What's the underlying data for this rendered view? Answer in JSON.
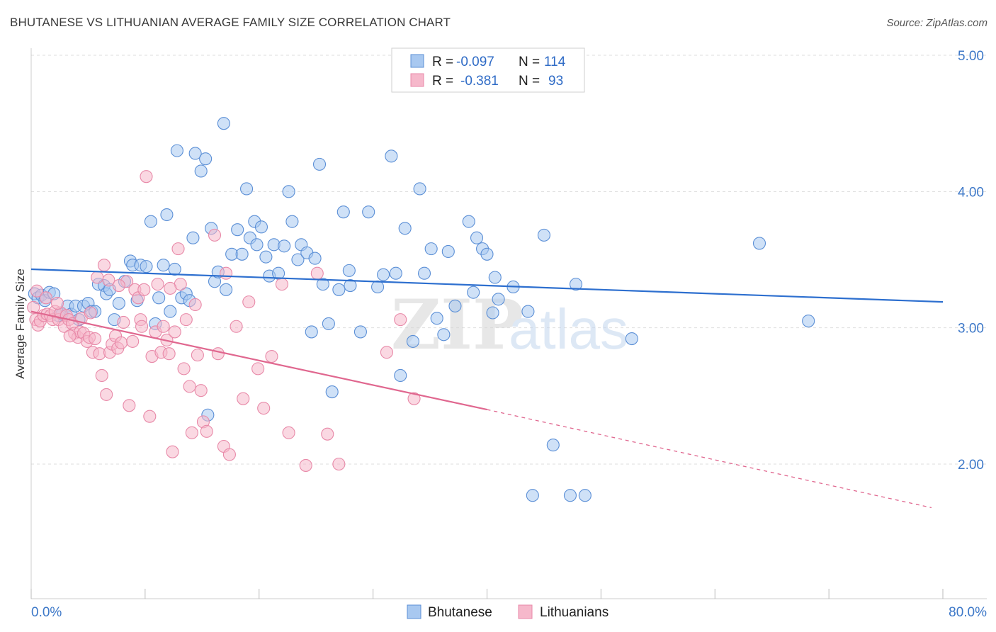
{
  "header": {
    "title": "BHUTANESE VS LITHUANIAN AVERAGE FAMILY SIZE CORRELATION CHART",
    "source": "Source: ZipAtlas.com"
  },
  "watermark": {
    "zip": "ZIP",
    "atlas": "atlas"
  },
  "colors": {
    "blue_fill": "#a8c8f0",
    "blue_stroke": "#5b8fd6",
    "blue_line": "#2d6fcf",
    "pink_fill": "#f6b8cb",
    "pink_stroke": "#e889a8",
    "pink_line": "#e0678f",
    "axis_text": "#3d78c8",
    "grid": "#dddddd"
  },
  "legend": {
    "rows": [
      {
        "r_label": "R =",
        "r_value": "-0.097",
        "n_label": "N =",
        "n_value": "114"
      },
      {
        "r_label": "R =",
        "r_value": "-0.381",
        "n_label": "N =",
        "n_value": "93"
      }
    ],
    "bottom": [
      "Bhutanese",
      "Lithuanians"
    ]
  },
  "chart_data": {
    "type": "scatter",
    "title": "BHUTANESE VS LITHUANIAN AVERAGE FAMILY SIZE CORRELATION CHART",
    "ylabel": "Average Family Size",
    "xlabel": "",
    "xlim": [
      0,
      80
    ],
    "ylim": [
      1.0,
      5.1
    ],
    "x_tick_labels": [
      "0.0%",
      "80.0%"
    ],
    "y_ticks": [
      2.0,
      3.0,
      4.0,
      5.0
    ],
    "y_tick_labels": [
      "2.00",
      "3.00",
      "4.00",
      "5.00"
    ],
    "grid": true,
    "legend_position": "top-center",
    "series": [
      {
        "name": "Bhutanese",
        "color": "#5b8fd6",
        "trend": {
          "x": [
            0,
            80
          ],
          "y": [
            3.43,
            3.19
          ]
        },
        "points": [
          [
            0.3,
            3.25
          ],
          [
            0.6,
            3.22
          ],
          [
            0.9,
            3.24
          ],
          [
            1.2,
            3.2
          ],
          [
            1.6,
            3.26
          ],
          [
            2.0,
            3.25
          ],
          [
            2.4,
            3.09
          ],
          [
            2.7,
            3.1
          ],
          [
            3.2,
            3.16
          ],
          [
            3.5,
            3.1
          ],
          [
            3.9,
            3.16
          ],
          [
            4.2,
            3.06
          ],
          [
            4.6,
            3.16
          ],
          [
            5.0,
            3.18
          ],
          [
            5.3,
            3.12
          ],
          [
            5.6,
            3.12
          ],
          [
            5.9,
            3.32
          ],
          [
            6.4,
            3.31
          ],
          [
            6.6,
            3.25
          ],
          [
            6.9,
            3.28
          ],
          [
            7.3,
            3.06
          ],
          [
            7.7,
            3.18
          ],
          [
            8.2,
            3.34
          ],
          [
            8.7,
            3.49
          ],
          [
            8.9,
            3.46
          ],
          [
            9.3,
            3.2
          ],
          [
            9.6,
            3.46
          ],
          [
            10.1,
            3.45
          ],
          [
            10.5,
            3.78
          ],
          [
            10.9,
            3.03
          ],
          [
            11.2,
            3.22
          ],
          [
            11.6,
            3.46
          ],
          [
            11.9,
            3.83
          ],
          [
            12.2,
            3.12
          ],
          [
            12.6,
            3.43
          ],
          [
            12.8,
            4.3
          ],
          [
            13.2,
            3.22
          ],
          [
            13.6,
            3.25
          ],
          [
            13.9,
            3.2
          ],
          [
            14.2,
            3.66
          ],
          [
            14.4,
            4.28
          ],
          [
            14.9,
            4.15
          ],
          [
            15.3,
            4.24
          ],
          [
            15.5,
            2.36
          ],
          [
            15.8,
            3.73
          ],
          [
            16.1,
            3.34
          ],
          [
            16.4,
            3.41
          ],
          [
            16.9,
            4.5
          ],
          [
            17.1,
            3.28
          ],
          [
            17.6,
            3.54
          ],
          [
            18.1,
            3.72
          ],
          [
            18.5,
            3.54
          ],
          [
            18.9,
            4.02
          ],
          [
            19.2,
            3.66
          ],
          [
            19.6,
            3.78
          ],
          [
            19.8,
            3.61
          ],
          [
            20.2,
            3.74
          ],
          [
            20.6,
            3.52
          ],
          [
            20.9,
            3.38
          ],
          [
            21.3,
            3.61
          ],
          [
            21.7,
            3.4
          ],
          [
            22.2,
            3.6
          ],
          [
            22.6,
            4.0
          ],
          [
            22.9,
            3.78
          ],
          [
            23.4,
            3.5
          ],
          [
            23.7,
            3.61
          ],
          [
            24.2,
            3.55
          ],
          [
            24.6,
            2.97
          ],
          [
            24.9,
            3.51
          ],
          [
            25.3,
            4.2
          ],
          [
            25.6,
            3.32
          ],
          [
            26.1,
            3.03
          ],
          [
            26.4,
            2.53
          ],
          [
            27.0,
            3.28
          ],
          [
            27.4,
            3.85
          ],
          [
            27.9,
            3.42
          ],
          [
            28.0,
            3.31
          ],
          [
            28.9,
            2.97
          ],
          [
            29.6,
            3.85
          ],
          [
            30.4,
            3.3
          ],
          [
            30.9,
            3.39
          ],
          [
            31.6,
            4.26
          ],
          [
            32.0,
            3.4
          ],
          [
            32.4,
            2.65
          ],
          [
            32.8,
            3.73
          ],
          [
            33.5,
            2.9
          ],
          [
            34.1,
            4.02
          ],
          [
            34.5,
            3.4
          ],
          [
            35.1,
            3.58
          ],
          [
            35.6,
            3.07
          ],
          [
            36.2,
            2.95
          ],
          [
            36.6,
            3.56
          ],
          [
            37.2,
            3.16
          ],
          [
            38.4,
            3.78
          ],
          [
            38.8,
            3.26
          ],
          [
            39.1,
            3.66
          ],
          [
            39.6,
            3.58
          ],
          [
            40.0,
            3.54
          ],
          [
            40.5,
            3.11
          ],
          [
            40.7,
            3.37
          ],
          [
            41.0,
            3.21
          ],
          [
            42.3,
            3.3
          ],
          [
            43.6,
            3.12
          ],
          [
            44.0,
            1.77
          ],
          [
            45.0,
            3.68
          ],
          [
            45.8,
            2.14
          ],
          [
            47.3,
            1.77
          ],
          [
            47.8,
            3.32
          ],
          [
            48.6,
            1.77
          ],
          [
            63.9,
            3.62
          ],
          [
            68.2,
            3.05
          ],
          [
            52.7,
            2.92
          ]
        ]
      },
      {
        "name": "Lithuanians",
        "color": "#e889a8",
        "trend": {
          "x": [
            0,
            40
          ],
          "y": [
            3.12,
            2.4
          ]
        },
        "trend_dashed": {
          "x": [
            40,
            79
          ],
          "y": [
            2.4,
            1.68
          ]
        },
        "points": [
          [
            0.2,
            3.15
          ],
          [
            0.4,
            3.06
          ],
          [
            0.6,
            3.02
          ],
          [
            0.8,
            3.05
          ],
          [
            1.1,
            3.09
          ],
          [
            1.4,
            3.1
          ],
          [
            1.7,
            3.09
          ],
          [
            1.9,
            3.06
          ],
          [
            2.1,
            3.12
          ],
          [
            2.4,
            3.06
          ],
          [
            2.6,
            3.11
          ],
          [
            2.9,
            3.01
          ],
          [
            3.1,
            3.09
          ],
          [
            3.3,
            3.06
          ],
          [
            3.6,
            3.03
          ],
          [
            3.8,
            2.96
          ],
          [
            4.1,
            2.93
          ],
          [
            4.3,
            2.97
          ],
          [
            4.6,
            2.96
          ],
          [
            4.9,
            2.9
          ],
          [
            5.1,
            2.93
          ],
          [
            5.4,
            2.82
          ],
          [
            5.6,
            2.92
          ],
          [
            5.8,
            3.37
          ],
          [
            6.0,
            2.81
          ],
          [
            6.2,
            2.65
          ],
          [
            6.4,
            3.46
          ],
          [
            6.6,
            2.51
          ],
          [
            6.9,
            2.82
          ],
          [
            7.1,
            2.88
          ],
          [
            7.4,
            2.94
          ],
          [
            7.6,
            2.85
          ],
          [
            7.9,
            2.89
          ],
          [
            8.1,
            3.04
          ],
          [
            8.4,
            3.34
          ],
          [
            8.6,
            2.43
          ],
          [
            8.9,
            2.9
          ],
          [
            9.1,
            3.28
          ],
          [
            9.4,
            3.22
          ],
          [
            9.6,
            3.06
          ],
          [
            9.9,
            3.28
          ],
          [
            10.1,
            4.11
          ],
          [
            10.4,
            2.35
          ],
          [
            10.6,
            2.79
          ],
          [
            10.9,
            2.97
          ],
          [
            11.1,
            3.32
          ],
          [
            11.4,
            2.82
          ],
          [
            11.6,
            3.01
          ],
          [
            11.9,
            2.91
          ],
          [
            12.1,
            2.81
          ],
          [
            12.4,
            2.09
          ],
          [
            12.6,
            2.97
          ],
          [
            12.9,
            3.58
          ],
          [
            13.1,
            3.32
          ],
          [
            13.4,
            2.7
          ],
          [
            13.6,
            3.06
          ],
          [
            13.9,
            2.57
          ],
          [
            14.1,
            2.23
          ],
          [
            14.4,
            3.17
          ],
          [
            14.6,
            2.8
          ],
          [
            14.9,
            2.54
          ],
          [
            15.1,
            2.31
          ],
          [
            15.4,
            2.24
          ],
          [
            16.1,
            3.68
          ],
          [
            16.4,
            2.81
          ],
          [
            16.9,
            2.13
          ],
          [
            17.1,
            3.4
          ],
          [
            17.4,
            2.07
          ],
          [
            18.0,
            3.01
          ],
          [
            18.6,
            2.48
          ],
          [
            19.1,
            3.19
          ],
          [
            19.9,
            2.7
          ],
          [
            20.4,
            2.41
          ],
          [
            21.1,
            2.79
          ],
          [
            22.0,
            3.32
          ],
          [
            22.6,
            2.23
          ],
          [
            24.1,
            1.99
          ],
          [
            25.1,
            3.4
          ],
          [
            26.0,
            2.22
          ],
          [
            27.0,
            2.0
          ],
          [
            31.2,
            2.82
          ],
          [
            32.4,
            3.06
          ],
          [
            33.6,
            2.48
          ],
          [
            0.5,
            3.27
          ],
          [
            1.3,
            3.22
          ],
          [
            2.3,
            3.18
          ],
          [
            3.4,
            2.94
          ],
          [
            4.4,
            3.07
          ],
          [
            5.2,
            3.11
          ],
          [
            6.8,
            3.35
          ],
          [
            7.7,
            3.31
          ],
          [
            9.7,
            3.01
          ],
          [
            12.2,
            3.29
          ]
        ]
      }
    ]
  }
}
